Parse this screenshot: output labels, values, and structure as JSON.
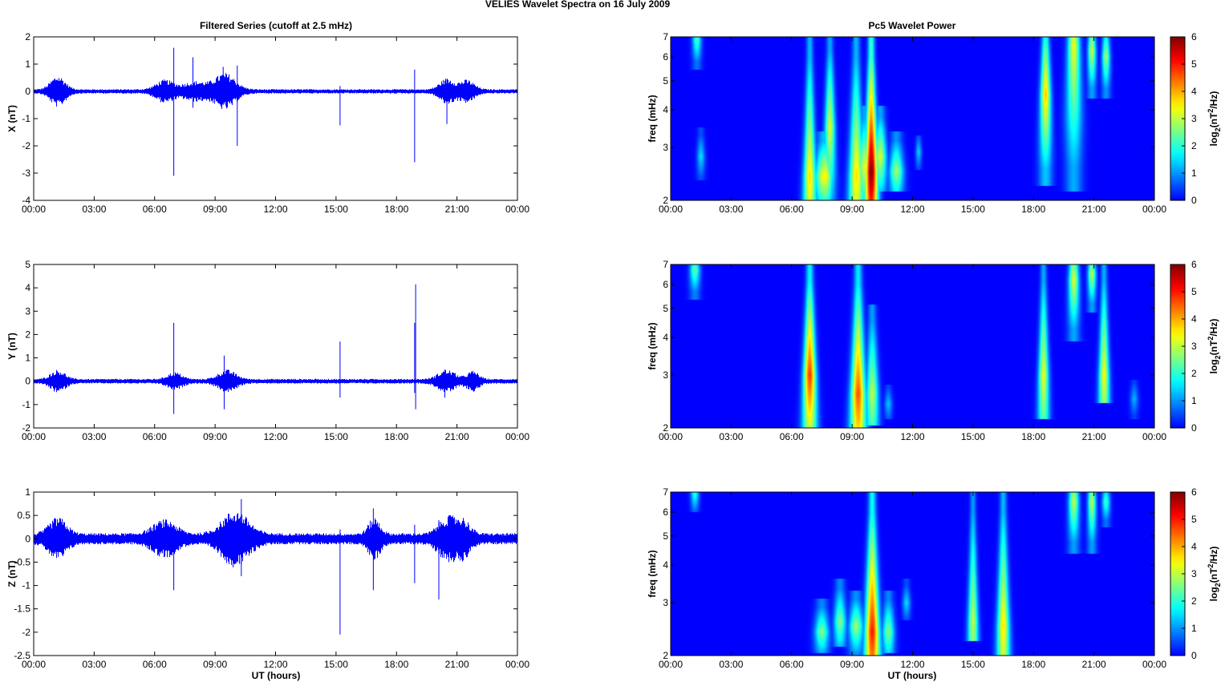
{
  "figure_title": "VELIES Wavelet Spectra on 16 July      2009",
  "left_title": "Filtered Series (cutoff at 2.5 mHz)",
  "right_title": "Pc5 Wavelet Power",
  "xlabel": "UT (hours)",
  "spec_ylabel": "freq (mHz)",
  "cbar_label": "log2(nT2/Hz)",
  "colors": {
    "trace": "#0000ff",
    "bg": "#00008f"
  },
  "chart_data": [
    {
      "type": "line",
      "name": "X",
      "ylabel": "X (nT)",
      "xlim": [
        0,
        24
      ],
      "ylim": [
        -4,
        2
      ],
      "yticks": [
        2,
        1,
        0,
        -1,
        -2,
        -3,
        -4
      ],
      "xtick_labels": [
        "00:00",
        "03:00",
        "06:00",
        "09:00",
        "12:00",
        "15:00",
        "18:00",
        "21:00",
        "00:00"
      ],
      "noise_amplitude": 0.08,
      "bursts": [
        {
          "t": 1.2,
          "amp": 0.5,
          "w": 0.5
        },
        {
          "t": 6.5,
          "amp": 0.35,
          "w": 0.6
        },
        {
          "t": 8.0,
          "amp": 0.3,
          "w": 0.8
        },
        {
          "t": 9.5,
          "amp": 0.6,
          "w": 0.7
        },
        {
          "t": 20.5,
          "amp": 0.4,
          "w": 0.5
        },
        {
          "t": 21.5,
          "amp": 0.35,
          "w": 0.5
        }
      ],
      "spikes": [
        {
          "t": 6.95,
          "min": -3.1,
          "max": 1.6
        },
        {
          "t": 7.9,
          "min": -0.6,
          "max": 1.25
        },
        {
          "t": 9.4,
          "min": -0.5,
          "max": 0.9
        },
        {
          "t": 10.1,
          "min": -2.0,
          "max": 0.95
        },
        {
          "t": 15.2,
          "min": -1.25,
          "max": 0.2
        },
        {
          "t": 18.9,
          "min": -2.6,
          "max": 0.8
        },
        {
          "t": 20.5,
          "min": -1.2,
          "max": 0.45
        }
      ]
    },
    {
      "type": "line",
      "name": "Y",
      "ylabel": "Y (nT)",
      "xlim": [
        0,
        24
      ],
      "ylim": [
        -2,
        5
      ],
      "yticks": [
        5,
        4,
        3,
        2,
        1,
        0,
        -1,
        -2
      ],
      "xtick_labels": [
        "00:00",
        "03:00",
        "06:00",
        "09:00",
        "12:00",
        "15:00",
        "18:00",
        "21:00",
        "00:00"
      ],
      "noise_amplitude": 0.1,
      "bursts": [
        {
          "t": 1.2,
          "amp": 0.4,
          "w": 0.5
        },
        {
          "t": 7.0,
          "amp": 0.3,
          "w": 0.5
        },
        {
          "t": 9.6,
          "amp": 0.4,
          "w": 0.6
        },
        {
          "t": 20.5,
          "amp": 0.4,
          "w": 0.6
        },
        {
          "t": 21.8,
          "amp": 0.35,
          "w": 0.4
        }
      ],
      "spikes": [
        {
          "t": 6.95,
          "min": -1.4,
          "max": 2.5
        },
        {
          "t": 9.45,
          "min": -1.2,
          "max": 1.1
        },
        {
          "t": 15.2,
          "min": -0.7,
          "max": 1.7
        },
        {
          "t": 18.95,
          "min": -1.2,
          "max": 4.15
        },
        {
          "t": 18.9,
          "min": -0.5,
          "max": 2.5
        },
        {
          "t": 20.4,
          "min": -0.7,
          "max": 0.5
        }
      ]
    },
    {
      "type": "line",
      "name": "Z",
      "ylabel": "Z (nT)",
      "xlim": [
        0,
        24
      ],
      "ylim": [
        -2.5,
        1
      ],
      "yticks": [
        1,
        0.5,
        0,
        -0.5,
        -1,
        -1.5,
        -2,
        -2.5
      ],
      "xtick_labels": [
        "00:00",
        "03:00",
        "06:00",
        "09:00",
        "12:00",
        "15:00",
        "18:00",
        "21:00",
        "00:00"
      ],
      "noise_amplitude": 0.12,
      "bursts": [
        {
          "t": 1.2,
          "amp": 0.35,
          "w": 0.6
        },
        {
          "t": 6.5,
          "amp": 0.3,
          "w": 0.8
        },
        {
          "t": 10.0,
          "amp": 0.5,
          "w": 0.9
        },
        {
          "t": 16.9,
          "amp": 0.35,
          "w": 0.4
        },
        {
          "t": 20.5,
          "amp": 0.35,
          "w": 0.6
        },
        {
          "t": 21.3,
          "amp": 0.3,
          "w": 0.5
        }
      ],
      "spikes": [
        {
          "t": 6.95,
          "min": -1.1,
          "max": 0.3
        },
        {
          "t": 10.3,
          "min": -0.8,
          "max": 0.85
        },
        {
          "t": 15.2,
          "min": -2.05,
          "max": 0.2
        },
        {
          "t": 16.85,
          "min": -1.1,
          "max": 0.65
        },
        {
          "t": 18.9,
          "min": -0.95,
          "max": 0.3
        },
        {
          "t": 20.1,
          "min": -1.3,
          "max": 0.4
        },
        {
          "t": 20.6,
          "min": -0.5,
          "max": 0.5
        }
      ]
    },
    {
      "type": "heatmap",
      "name": "X",
      "ylabel": "freq (mHz)",
      "xlim": [
        0,
        24
      ],
      "ylim": [
        2,
        7
      ],
      "yscale": "log",
      "yticks": [
        7,
        6,
        5,
        4,
        3,
        2
      ],
      "xtick_labels": [
        "00:00",
        "03:00",
        "06:00",
        "09:00",
        "12:00",
        "15:00",
        "18:00",
        "21:00",
        "00:00"
      ],
      "colorbar": {
        "label": "log2(nT2/Hz)",
        "range": [
          0,
          6
        ],
        "ticks": [
          6,
          5,
          4,
          3,
          2,
          1,
          0
        ],
        "colormap": "jet"
      },
      "features": [
        {
          "t": 1.3,
          "f_lo": 5.6,
          "f_hi": 7,
          "peak": 2.2,
          "fpk": 6.8,
          "w": 0.22
        },
        {
          "t": 1.5,
          "f_lo": 2.4,
          "f_hi": 3.4,
          "peak": 1.5,
          "fpk": 2.8,
          "w": 0.2
        },
        {
          "t": 6.9,
          "f_lo": 2,
          "f_hi": 7,
          "peak": 3.6,
          "fpk": 2.4,
          "w": 0.3
        },
        {
          "t": 7.6,
          "f_lo": 2,
          "f_hi": 3.3,
          "peak": 3.4,
          "fpk": 2.4,
          "w": 0.45
        },
        {
          "t": 7.9,
          "f_lo": 2,
          "f_hi": 7,
          "peak": 3.2,
          "fpk": 3.5,
          "w": 0.25
        },
        {
          "t": 9.2,
          "f_lo": 2,
          "f_hi": 7,
          "peak": 3.5,
          "fpk": 2.4,
          "w": 0.35
        },
        {
          "t": 9.6,
          "f_lo": 2,
          "f_hi": 4.0,
          "peak": 3.0,
          "fpk": 2.6,
          "w": 0.35
        },
        {
          "t": 9.95,
          "f_lo": 2,
          "f_hi": 7,
          "peak": 6.0,
          "fpk": 2.5,
          "w": 0.3
        },
        {
          "t": 10.4,
          "f_lo": 2.2,
          "f_hi": 4.0,
          "peak": 3.2,
          "fpk": 2.8,
          "w": 0.3
        },
        {
          "t": 11.2,
          "f_lo": 2.2,
          "f_hi": 3.3,
          "peak": 2.8,
          "fpk": 2.5,
          "w": 0.35
        },
        {
          "t": 12.3,
          "f_lo": 2.6,
          "f_hi": 3.2,
          "peak": 1.4,
          "fpk": 2.9,
          "w": 0.15
        },
        {
          "t": 18.6,
          "f_lo": 2.3,
          "f_hi": 7,
          "peak": 3.8,
          "fpk": 4.5,
          "w": 0.25
        },
        {
          "t": 20.0,
          "f_lo": 2.2,
          "f_hi": 7,
          "peak": 3.3,
          "fpk": 6.5,
          "w": 0.3
        },
        {
          "t": 20.9,
          "f_lo": 4.5,
          "f_hi": 7,
          "peak": 3.1,
          "fpk": 6.3,
          "w": 0.2
        },
        {
          "t": 21.6,
          "f_lo": 4.5,
          "f_hi": 7,
          "peak": 2.8,
          "fpk": 6.0,
          "w": 0.2
        }
      ]
    },
    {
      "type": "heatmap",
      "name": "Y",
      "ylabel": "freq (mHz)",
      "xlim": [
        0,
        24
      ],
      "ylim": [
        2,
        7
      ],
      "yscale": "log",
      "yticks": [
        7,
        6,
        5,
        4,
        3,
        2
      ],
      "xtick_labels": [
        "00:00",
        "03:00",
        "06:00",
        "09:00",
        "12:00",
        "15:00",
        "18:00",
        "21:00",
        "00:00"
      ],
      "colorbar": {
        "label": "log2(nT2/Hz)",
        "range": [
          0,
          6
        ],
        "ticks": [
          6,
          5,
          4,
          3,
          2,
          1,
          0
        ],
        "colormap": "jet"
      },
      "features": [
        {
          "t": 1.2,
          "f_lo": 5.5,
          "f_hi": 7,
          "peak": 2.4,
          "fpk": 6.7,
          "w": 0.25
        },
        {
          "t": 6.9,
          "f_lo": 2,
          "f_hi": 7,
          "peak": 4.8,
          "fpk": 3.0,
          "w": 0.3
        },
        {
          "t": 9.3,
          "f_lo": 2,
          "f_hi": 7,
          "peak": 4.6,
          "fpk": 2.6,
          "w": 0.35
        },
        {
          "t": 10.0,
          "f_lo": 2.1,
          "f_hi": 5.0,
          "peak": 3.0,
          "fpk": 2.6,
          "w": 0.3
        },
        {
          "t": 10.8,
          "f_lo": 2.2,
          "f_hi": 2.7,
          "peak": 1.3,
          "fpk": 2.4,
          "w": 0.2
        },
        {
          "t": 18.5,
          "f_lo": 2.2,
          "f_hi": 7,
          "peak": 3.3,
          "fpk": 3.0,
          "w": 0.25
        },
        {
          "t": 20.0,
          "f_lo": 4.0,
          "f_hi": 7,
          "peak": 3.2,
          "fpk": 6.2,
          "w": 0.25
        },
        {
          "t": 20.9,
          "f_lo": 5.0,
          "f_hi": 7,
          "peak": 3.0,
          "fpk": 6.5,
          "w": 0.2
        },
        {
          "t": 21.5,
          "f_lo": 2.5,
          "f_hi": 7,
          "peak": 3.4,
          "fpk": 3.0,
          "w": 0.25
        },
        {
          "t": 23.0,
          "f_lo": 2.2,
          "f_hi": 2.8,
          "peak": 1.2,
          "fpk": 2.5,
          "w": 0.2
        }
      ]
    },
    {
      "type": "heatmap",
      "name": "Z",
      "ylabel": "freq (mHz)",
      "xlim": [
        0,
        24
      ],
      "ylim": [
        2,
        7
      ],
      "yscale": "log",
      "yticks": [
        7,
        6,
        5,
        4,
        3,
        2
      ],
      "xtick_labels": [
        "00:00",
        "03:00",
        "06:00",
        "09:00",
        "12:00",
        "15:00",
        "18:00",
        "21:00",
        "00:00"
      ],
      "colorbar": {
        "label": "log2(nT2/Hz)",
        "range": [
          0,
          6
        ],
        "ticks": [
          6,
          5,
          4,
          3,
          2,
          1,
          0
        ],
        "colormap": "jet"
      },
      "features": [
        {
          "t": 1.2,
          "f_lo": 6.2,
          "f_hi": 7,
          "peak": 2.0,
          "fpk": 6.9,
          "w": 0.2
        },
        {
          "t": 7.5,
          "f_lo": 2.1,
          "f_hi": 3.0,
          "peak": 2.6,
          "fpk": 2.4,
          "w": 0.35
        },
        {
          "t": 8.4,
          "f_lo": 2.2,
          "f_hi": 3.5,
          "peak": 2.6,
          "fpk": 2.6,
          "w": 0.3
        },
        {
          "t": 9.2,
          "f_lo": 2.0,
          "f_hi": 3.2,
          "peak": 2.8,
          "fpk": 2.5,
          "w": 0.35
        },
        {
          "t": 10.0,
          "f_lo": 2.0,
          "f_hi": 7,
          "peak": 5.0,
          "fpk": 2.4,
          "w": 0.35
        },
        {
          "t": 10.8,
          "f_lo": 2.1,
          "f_hi": 3.2,
          "peak": 2.6,
          "fpk": 2.4,
          "w": 0.3
        },
        {
          "t": 11.7,
          "f_lo": 2.7,
          "f_hi": 3.5,
          "peak": 1.5,
          "fpk": 3.0,
          "w": 0.2
        },
        {
          "t": 15.0,
          "f_lo": 2.3,
          "f_hi": 7,
          "peak": 3.0,
          "fpk": 2.6,
          "w": 0.25
        },
        {
          "t": 16.5,
          "f_lo": 2.0,
          "f_hi": 7,
          "peak": 3.6,
          "fpk": 2.5,
          "w": 0.3
        },
        {
          "t": 20.0,
          "f_lo": 4.5,
          "f_hi": 7,
          "peak": 3.0,
          "fpk": 6.5,
          "w": 0.25
        },
        {
          "t": 20.9,
          "f_lo": 4.5,
          "f_hi": 7,
          "peak": 3.0,
          "fpk": 6.5,
          "w": 0.2
        },
        {
          "t": 21.6,
          "f_lo": 5.5,
          "f_hi": 7,
          "peak": 2.2,
          "fpk": 6.5,
          "w": 0.2
        }
      ]
    }
  ]
}
